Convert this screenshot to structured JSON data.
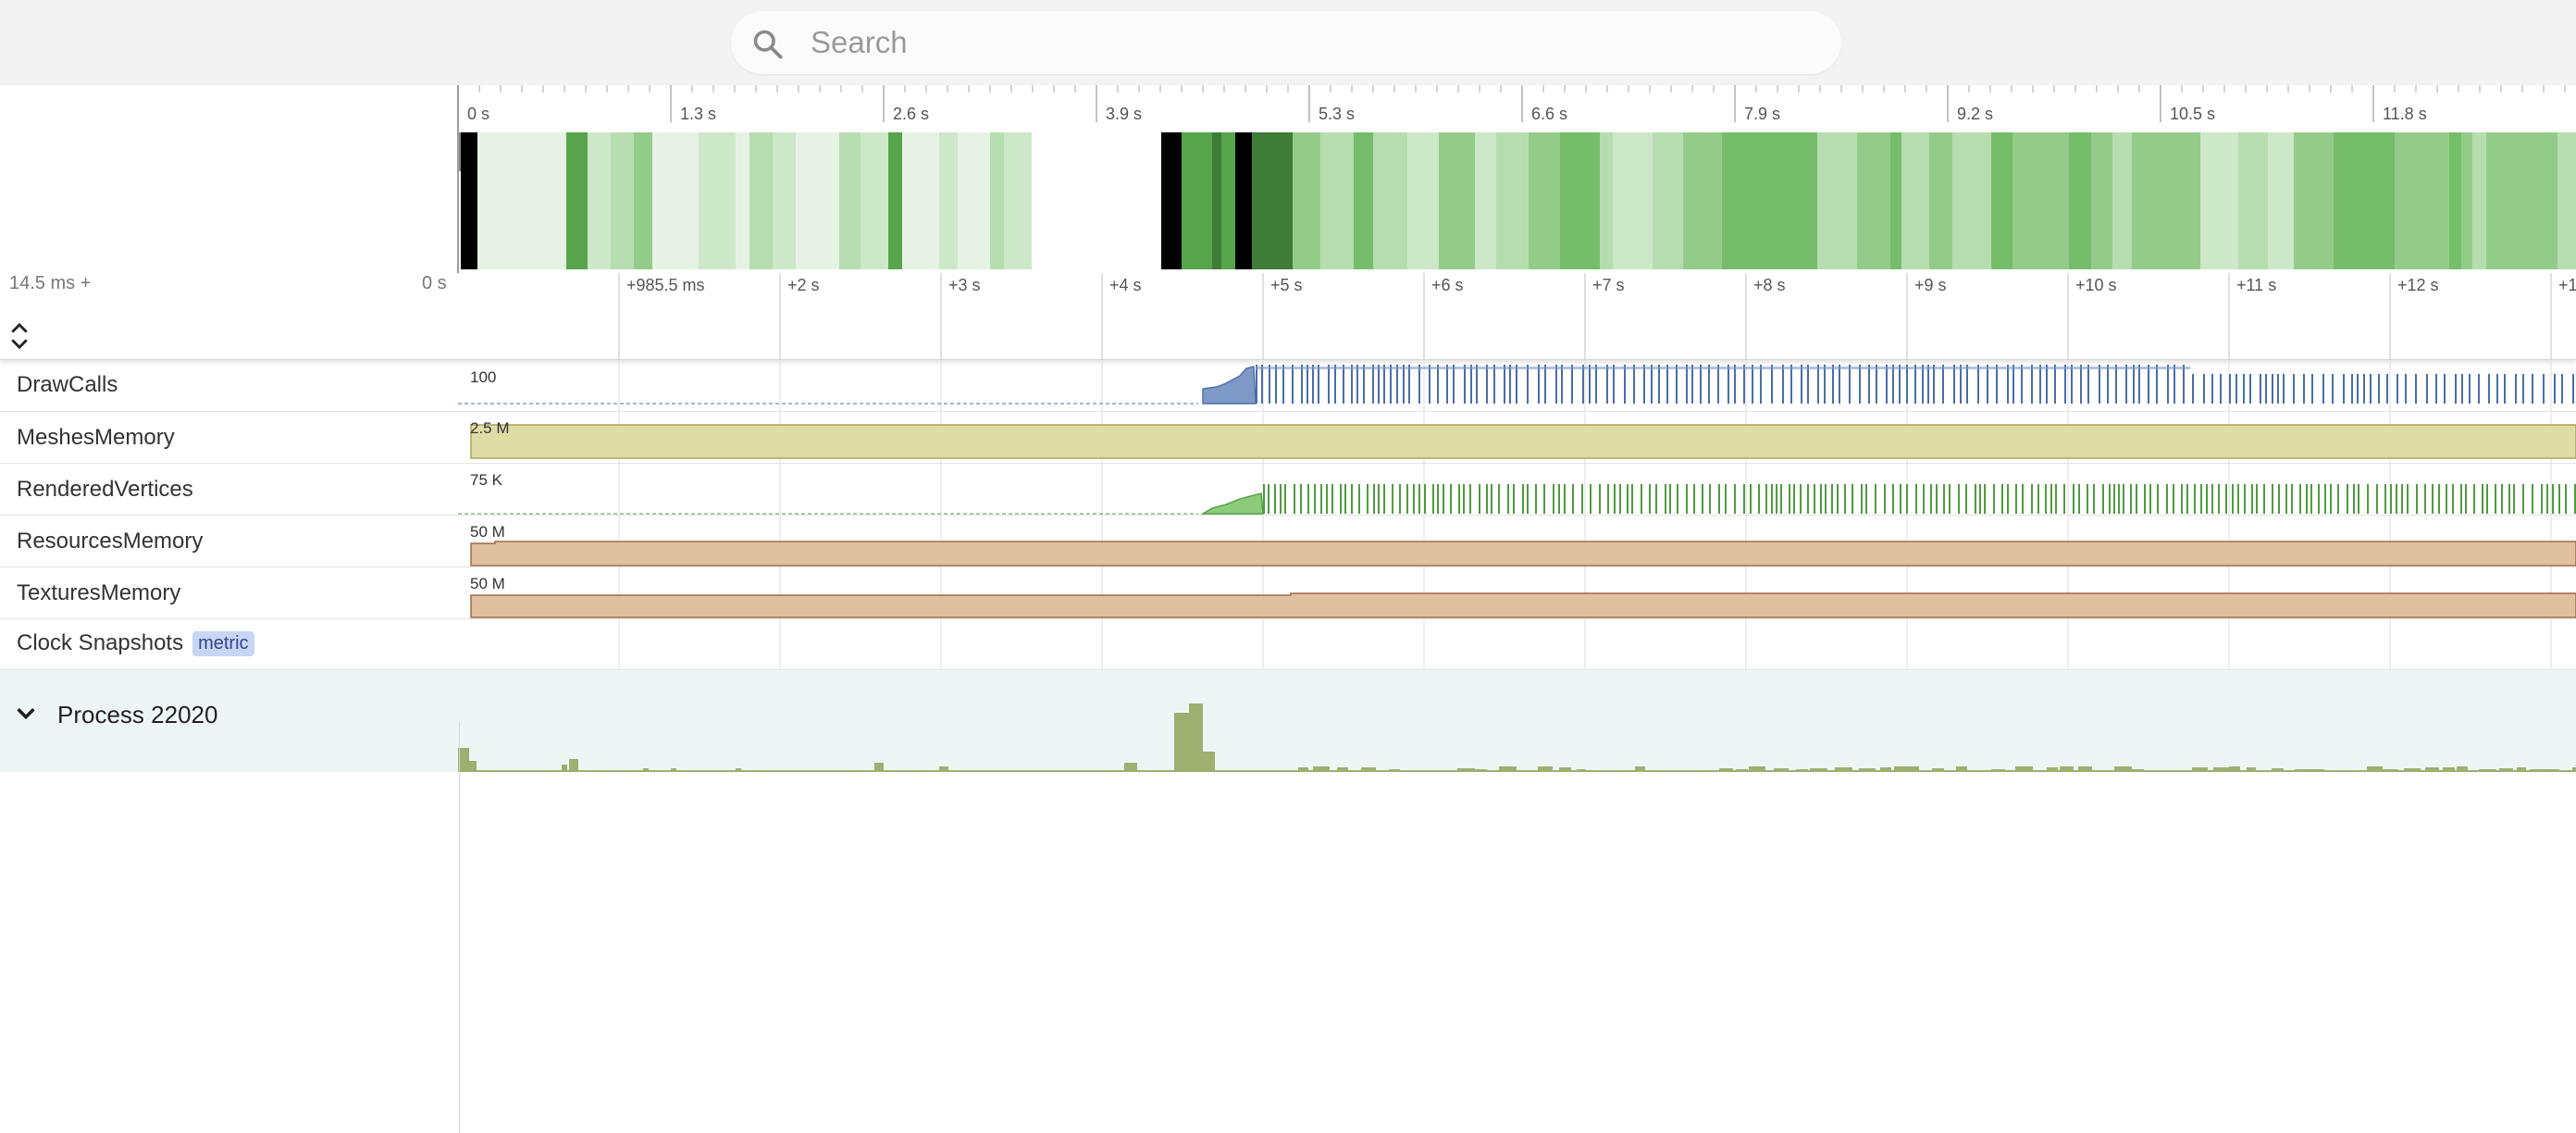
{
  "search": {
    "placeholder": "Search",
    "value": ""
  },
  "overview": {
    "tick_labels": [
      "0 s",
      "1.3 s",
      "2.6 s",
      "3.9 s",
      "5.3 s",
      "6.6 s",
      "7.9 s",
      "9.2 s",
      "10.5 s",
      "11.8 s"
    ]
  },
  "detail": {
    "offset_label": "14.5 ms +",
    "zero_label": "0 s",
    "tick_labels": [
      "+985.5 ms",
      "+2 s",
      "+3 s",
      "+4 s",
      "+5 s",
      "+6 s",
      "+7 s",
      "+8 s",
      "+9 s",
      "+10 s",
      "+11 s",
      "+12 s",
      "+1"
    ]
  },
  "tracks": [
    {
      "label": "DrawCalls",
      "scale": "100"
    },
    {
      "label": "MeshesMemory",
      "scale": "2.5 M"
    },
    {
      "label": "RenderedVertices",
      "scale": "75 K"
    },
    {
      "label": "ResourcesMemory",
      "scale": "50 M"
    },
    {
      "label": "TexturesMemory",
      "scale": "50 M"
    }
  ],
  "clock_snapshots": {
    "label": "Clock Snapshots",
    "badge": "metric"
  },
  "process": {
    "label": "Process 22020"
  },
  "colors": {
    "drawcalls": "#4a6ea9",
    "drawcalls_fill": "#7f99c6",
    "meshes": "#dedda6",
    "meshes_stroke": "#a8a35c",
    "vertices": "#4f9b3f",
    "vertices_fill": "#8ccb7a",
    "memory": "#dfc0a1",
    "memory_stroke": "#a06b4a",
    "process": "#9cb06f",
    "overview_greens": [
      "#e6f3e4",
      "#cde8c8",
      "#b6ddb0",
      "#93cc89",
      "#76bd6b",
      "#56a54b",
      "#3e7c38",
      "#000000"
    ]
  }
}
